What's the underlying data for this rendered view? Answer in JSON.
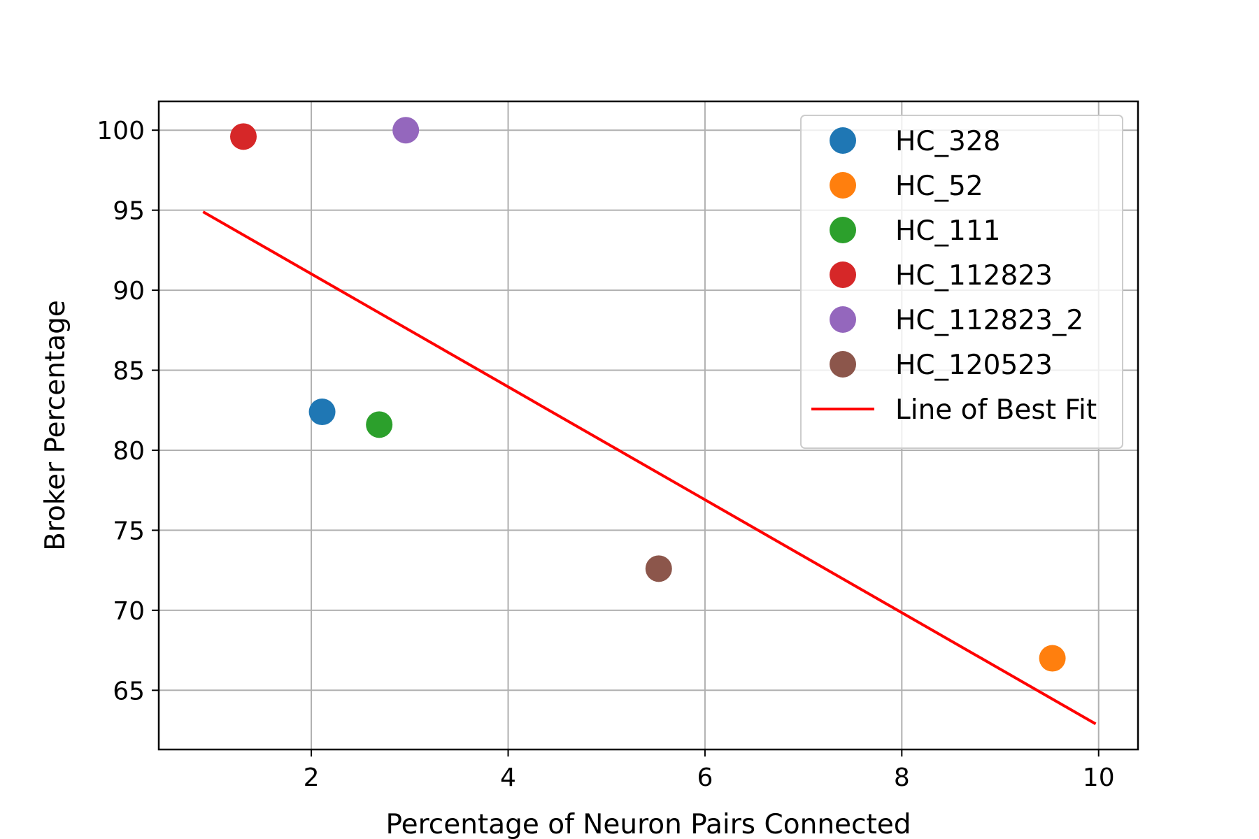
{
  "chart_data": {
    "type": "scatter",
    "title": "",
    "xlabel": "Percentage of Neuron Pairs Connected",
    "ylabel": "Broker Percentage",
    "xlim": [
      0.45,
      10.4
    ],
    "ylim": [
      61.3,
      101.8
    ],
    "xticks": [
      2,
      4,
      6,
      8,
      10
    ],
    "yticks": [
      65,
      70,
      75,
      80,
      85,
      90,
      95,
      100
    ],
    "grid": true,
    "legend_position": "upper right",
    "series": [
      {
        "name": "HC_328",
        "color": "#1f77b4",
        "x": [
          2.11
        ],
        "y": [
          82.4
        ]
      },
      {
        "name": "HC_52",
        "color": "#ff7f0e",
        "x": [
          9.53
        ],
        "y": [
          67.0
        ]
      },
      {
        "name": "HC_111",
        "color": "#2ca02c",
        "x": [
          2.69
        ],
        "y": [
          81.6
        ]
      },
      {
        "name": "HC_112823",
        "color": "#d62728",
        "x": [
          1.31
        ],
        "y": [
          99.6
        ]
      },
      {
        "name": "HC_112823_2",
        "color": "#9467bd",
        "x": [
          2.96
        ],
        "y": [
          100.0
        ]
      },
      {
        "name": "HC_120523",
        "color": "#8c564b",
        "x": [
          5.53
        ],
        "y": [
          72.6
        ]
      }
    ],
    "fit_line": {
      "name": "Line of Best Fit",
      "color": "#ff0000",
      "x": [
        0.9,
        9.97
      ],
      "y": [
        94.9,
        62.9
      ]
    }
  }
}
